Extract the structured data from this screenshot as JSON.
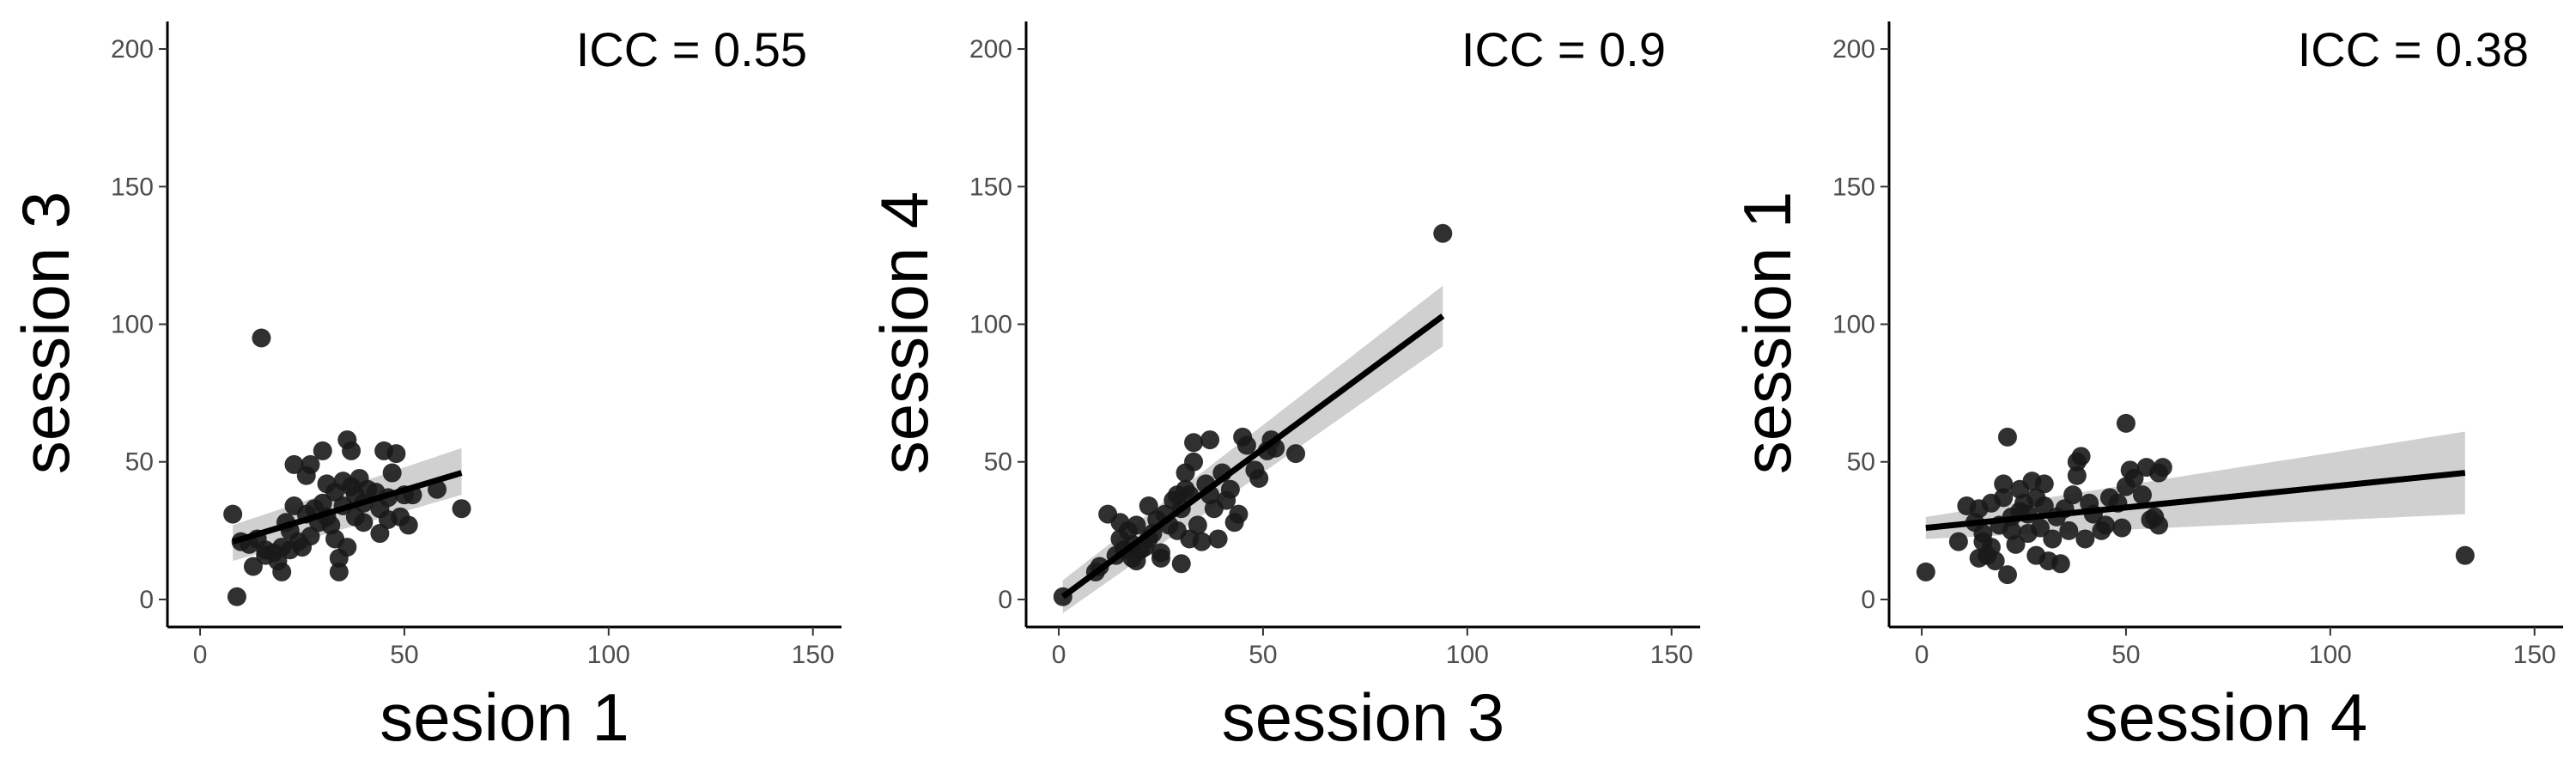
{
  "chart_data": [
    {
      "type": "scatter",
      "annotation": "ICC = 0.55",
      "xlabel": "sesion 1",
      "ylabel": "session 3",
      "xlim": [
        -8,
        157
      ],
      "ylim": [
        -10,
        210
      ],
      "xticks": [
        0,
        50,
        100,
        150
      ],
      "yticks": [
        0,
        50,
        100,
        150,
        200
      ],
      "fit": {
        "x": [
          8,
          64
        ],
        "y": [
          21,
          46
        ],
        "ci_lower": [
          14,
          38
        ],
        "ci_upper": [
          27,
          55
        ]
      },
      "points": [
        [
          8,
          31
        ],
        [
          9,
          1
        ],
        [
          10,
          21
        ],
        [
          12,
          20
        ],
        [
          13,
          12
        ],
        [
          14,
          22
        ],
        [
          15,
          95
        ],
        [
          16,
          16
        ],
        [
          16,
          18
        ],
        [
          18,
          17
        ],
        [
          19,
          14
        ],
        [
          20,
          10
        ],
        [
          20,
          19
        ],
        [
          21,
          28
        ],
        [
          22,
          18
        ],
        [
          22,
          25
        ],
        [
          23,
          34
        ],
        [
          23,
          49
        ],
        [
          24,
          21
        ],
        [
          25,
          19
        ],
        [
          26,
          31
        ],
        [
          26,
          45
        ],
        [
          27,
          49
        ],
        [
          27,
          23
        ],
        [
          28,
          33
        ],
        [
          29,
          28
        ],
        [
          30,
          35
        ],
        [
          30,
          54
        ],
        [
          31,
          30
        ],
        [
          31,
          42
        ],
        [
          32,
          27
        ],
        [
          33,
          22
        ],
        [
          33,
          39
        ],
        [
          34,
          15
        ],
        [
          34,
          10
        ],
        [
          35,
          43
        ],
        [
          35,
          34
        ],
        [
          36,
          58
        ],
        [
          36,
          19
        ],
        [
          37,
          41
        ],
        [
          37,
          54
        ],
        [
          38,
          30
        ],
        [
          38,
          38
        ],
        [
          39,
          44
        ],
        [
          40,
          35
        ],
        [
          40,
          28
        ],
        [
          41,
          40
        ],
        [
          43,
          39
        ],
        [
          44,
          24
        ],
        [
          44,
          33
        ],
        [
          45,
          54
        ],
        [
          46,
          29
        ],
        [
          46,
          37
        ],
        [
          47,
          46
        ],
        [
          48,
          53
        ],
        [
          49,
          30
        ],
        [
          50,
          38
        ],
        [
          51,
          27
        ],
        [
          52,
          38
        ],
        [
          58,
          40
        ],
        [
          64,
          33
        ]
      ]
    },
    {
      "type": "scatter",
      "annotation": "ICC = 0.9",
      "xlabel": "session 3",
      "ylabel": "session 4",
      "xlim": [
        -8,
        157
      ],
      "ylim": [
        -10,
        210
      ],
      "xticks": [
        0,
        50,
        100,
        150
      ],
      "yticks": [
        0,
        50,
        100,
        150,
        200
      ],
      "fit": {
        "x": [
          1,
          94
        ],
        "y": [
          1,
          103
        ],
        "ci_lower": [
          -5,
          92
        ],
        "ci_upper": [
          7,
          114
        ]
      },
      "points": [
        [
          1,
          1
        ],
        [
          9,
          10
        ],
        [
          10,
          12
        ],
        [
          12,
          31
        ],
        [
          14,
          16
        ],
        [
          15,
          22
        ],
        [
          15,
          28
        ],
        [
          16,
          18
        ],
        [
          17,
          25
        ],
        [
          18,
          15
        ],
        [
          18,
          20
        ],
        [
          19,
          14
        ],
        [
          19,
          27
        ],
        [
          20,
          18
        ],
        [
          21,
          19
        ],
        [
          22,
          34
        ],
        [
          22,
          22
        ],
        [
          23,
          24
        ],
        [
          24,
          29
        ],
        [
          25,
          17
        ],
        [
          25,
          15
        ],
        [
          26,
          31
        ],
        [
          27,
          27
        ],
        [
          28,
          36
        ],
        [
          29,
          25
        ],
        [
          29,
          38
        ],
        [
          30,
          33
        ],
        [
          30,
          13
        ],
        [
          31,
          40
        ],
        [
          31,
          46
        ],
        [
          32,
          38
        ],
        [
          32,
          22
        ],
        [
          33,
          50
        ],
        [
          33,
          57
        ],
        [
          34,
          27
        ],
        [
          35,
          21
        ],
        [
          36,
          42
        ],
        [
          37,
          58
        ],
        [
          37,
          38
        ],
        [
          38,
          33
        ],
        [
          39,
          22
        ],
        [
          40,
          46
        ],
        [
          41,
          36
        ],
        [
          42,
          40
        ],
        [
          43,
          28
        ],
        [
          44,
          31
        ],
        [
          45,
          59
        ],
        [
          46,
          56
        ],
        [
          48,
          47
        ],
        [
          49,
          44
        ],
        [
          51,
          54
        ],
        [
          52,
          58
        ],
        [
          53,
          55
        ],
        [
          58,
          53
        ],
        [
          94,
          133
        ]
      ]
    },
    {
      "type": "scatter",
      "annotation": "ICC = 0.38",
      "xlabel": "session 4",
      "ylabel": "session 1",
      "xlim": [
        -8,
        157
      ],
      "ylim": [
        -10,
        210
      ],
      "xticks": [
        0,
        50,
        100,
        150
      ],
      "yticks": [
        0,
        50,
        100,
        150,
        200
      ],
      "fit": {
        "x": [
          1,
          133
        ],
        "y": [
          26,
          46
        ],
        "ci_lower": [
          22,
          31
        ],
        "ci_upper": [
          30,
          61
        ]
      },
      "points": [
        [
          1,
          10
        ],
        [
          9,
          21
        ],
        [
          11,
          34
        ],
        [
          13,
          28
        ],
        [
          14,
          15
        ],
        [
          14,
          33
        ],
        [
          15,
          24
        ],
        [
          15,
          21
        ],
        [
          16,
          16
        ],
        [
          17,
          35
        ],
        [
          17,
          19
        ],
        [
          18,
          14
        ],
        [
          19,
          27
        ],
        [
          20,
          37
        ],
        [
          20,
          42
        ],
        [
          21,
          59
        ],
        [
          21,
          9
        ],
        [
          22,
          30
        ],
        [
          22,
          25
        ],
        [
          23,
          20
        ],
        [
          24,
          40
        ],
        [
          24,
          32
        ],
        [
          25,
          35
        ],
        [
          26,
          24
        ],
        [
          26,
          31
        ],
        [
          27,
          43
        ],
        [
          28,
          16
        ],
        [
          28,
          37
        ],
        [
          29,
          26
        ],
        [
          30,
          34
        ],
        [
          30,
          42
        ],
        [
          31,
          14
        ],
        [
          32,
          22
        ],
        [
          33,
          30
        ],
        [
          34,
          13
        ],
        [
          35,
          33
        ],
        [
          36,
          25
        ],
        [
          37,
          38
        ],
        [
          38,
          45
        ],
        [
          38,
          50
        ],
        [
          39,
          52
        ],
        [
          40,
          22
        ],
        [
          41,
          35
        ],
        [
          42,
          31
        ],
        [
          44,
          25
        ],
        [
          45,
          27
        ],
        [
          46,
          37
        ],
        [
          48,
          35
        ],
        [
          49,
          26
        ],
        [
          50,
          64
        ],
        [
          50,
          41
        ],
        [
          51,
          47
        ],
        [
          52,
          44
        ],
        [
          54,
          38
        ],
        [
          55,
          48
        ],
        [
          56,
          29
        ],
        [
          57,
          30
        ],
        [
          58,
          27
        ],
        [
          58,
          46
        ],
        [
          59,
          48
        ],
        [
          133,
          16
        ]
      ]
    }
  ]
}
